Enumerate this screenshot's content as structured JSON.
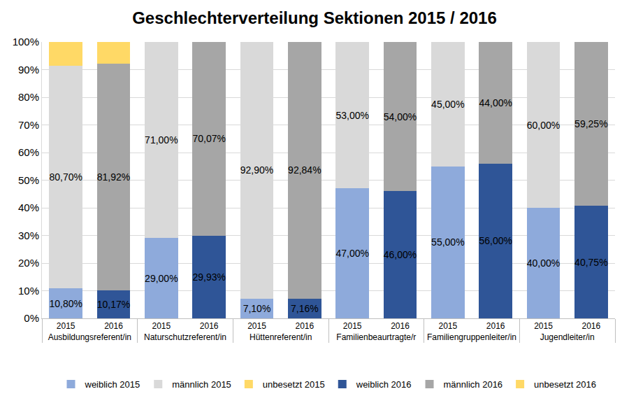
{
  "chart_data": {
    "type": "bar",
    "title": "Geschlechterverteilung Sektionen 2015 / 2016",
    "stacked": true,
    "data_labels": true,
    "grid": true,
    "legend": "bottom",
    "categories": [
      [
        "Ausbildungsreferent/in",
        "2015"
      ],
      [
        "Ausbildungsreferent/in",
        "2016"
      ],
      [
        "Naturschutzreferent/in",
        "2015"
      ],
      [
        "Naturschutzreferent/in",
        "2016"
      ],
      [
        "Hüttenreferent/in",
        "2015"
      ],
      [
        "Hüttenreferent/in",
        "2016"
      ],
      [
        "Familienbeaurtragte/r",
        "2015"
      ],
      [
        "Familienbeaurtragte/r",
        "2016"
      ],
      [
        "Familiengruppenleiter/in",
        "2015"
      ],
      [
        "Familiengruppenleiter/in",
        "2016"
      ],
      [
        "Jugendleiter/in",
        "2015"
      ],
      [
        "Jugendleiter/in",
        "2016"
      ]
    ],
    "series": [
      {
        "name": "weiblich 2015",
        "color": "#8eaadb",
        "values": [
          10.8,
          null,
          29,
          null,
          7.1,
          null,
          47,
          null,
          55,
          null,
          40,
          null
        ],
        "value_labels": [
          "10,80%",
          null,
          "29,00%",
          null,
          "7,10%",
          null,
          "47,00%",
          null,
          "55,00%",
          null,
          "40,00%",
          null
        ]
      },
      {
        "name": "männlich 2015",
        "color": "#d9d9d9",
        "values": [
          80.7,
          null,
          71,
          null,
          92.9,
          null,
          53,
          null,
          45,
          null,
          60,
          null
        ],
        "value_labels": [
          "80,70%",
          null,
          "71,00%",
          null,
          "92,90%",
          null,
          "53,00%",
          null,
          "45,00%",
          null,
          "60,00%",
          null
        ]
      },
      {
        "name": "unbesetzt 2015",
        "color": "#ffd966",
        "values": [
          8.5,
          null,
          null,
          null,
          null,
          null,
          null,
          null,
          null,
          null,
          null,
          null
        ]
      },
      {
        "name": "weiblich 2016",
        "color": "#2f5597",
        "values": [
          null,
          10.17,
          null,
          29.93,
          null,
          7.16,
          null,
          46,
          null,
          56,
          null,
          40.75
        ],
        "value_labels": [
          null,
          "10,17%",
          null,
          "29,93%",
          null,
          "7,16%",
          null,
          "46,00%",
          null,
          "56,00%",
          null,
          "40,75%"
        ]
      },
      {
        "name": "männlich 2016",
        "color": "#a6a6a6",
        "values": [
          null,
          81.92,
          null,
          70.07,
          null,
          92.84,
          null,
          54,
          null,
          44,
          null,
          59.25
        ],
        "value_labels": [
          null,
          "81,92%",
          null,
          "70,07%",
          null,
          "92,84%",
          null,
          "54,00%",
          null,
          "44,00%",
          null,
          "59,25%"
        ]
      },
      {
        "name": "unbesetzt 2016",
        "color": "#ffd966",
        "values": [
          null,
          7.91,
          null,
          null,
          null,
          null,
          null,
          null,
          null,
          null,
          null,
          null
        ]
      }
    ],
    "ylim": [
      0,
      100
    ],
    "yticks": [
      {
        "value": 0,
        "label": "0%"
      },
      {
        "value": 10,
        "label": "10%"
      },
      {
        "value": 20,
        "label": "20%"
      },
      {
        "value": 30,
        "label": "30%"
      },
      {
        "value": 40,
        "label": "40%"
      },
      {
        "value": 50,
        "label": "50%"
      },
      {
        "value": 60,
        "label": "60%"
      },
      {
        "value": 70,
        "label": "70%"
      },
      {
        "value": 80,
        "label": "80%"
      },
      {
        "value": 90,
        "label": "90%"
      },
      {
        "value": 100,
        "label": "100%"
      }
    ]
  }
}
